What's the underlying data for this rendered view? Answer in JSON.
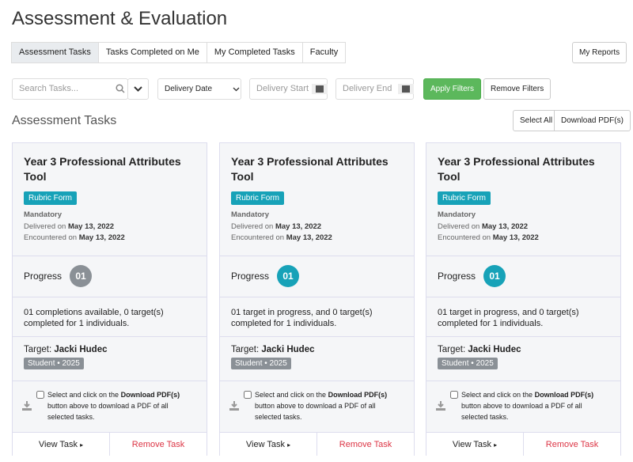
{
  "header": {
    "title": "Assessment & Evaluation"
  },
  "tabs": {
    "items": [
      "Assessment Tasks",
      "Tasks Completed on Me",
      "My Completed Tasks",
      "Faculty"
    ],
    "active": 0,
    "reports": "My Reports"
  },
  "filters": {
    "search": "Search Tasks...",
    "date_select": "Delivery Date",
    "start": "Delivery Start",
    "end": "Delivery End",
    "apply": "Apply Filters",
    "remove": "Remove Filters"
  },
  "section": {
    "title": "Assessment Tasks",
    "select_all": "Select All",
    "download": "Download PDF(s)"
  },
  "cards": [
    {
      "title": "Year 3 Professional Attributes Tool",
      "badge": "Rubric Form",
      "mandatory": "Mandatory",
      "delivered_label": "Delivered on",
      "delivered_date": "May 13, 2022",
      "encountered_label": "Encountered on",
      "encountered_date": "May 13, 2022",
      "progress_label": "Progress",
      "progress": "01",
      "progress_color": "#8a9096",
      "description": "01 completions available, 0 target(s) completed for 1 individuals.",
      "target_label": "Target:",
      "target_name": "Jacki Hudec",
      "target_tag": "Student • 2025",
      "select_pre": "Select and click on the",
      "select_bold": "Download PDF(s)",
      "select_post": "button above to download a PDF of all selected tasks.",
      "view": "View Task",
      "remove": "Remove Task"
    },
    {
      "title": "Year 3 Professional Attributes Tool",
      "badge": "Rubric Form",
      "mandatory": "Mandatory",
      "delivered_label": "Delivered on",
      "delivered_date": "May 13, 2022",
      "encountered_label": "Encountered on",
      "encountered_date": "May 13, 2022",
      "progress_label": "Progress",
      "progress": "01",
      "progress_color": "#17a2b8",
      "description": "01 target in progress, and 0 target(s) completed for 1 individuals.",
      "target_label": "Target:",
      "target_name": "Jacki Hudec",
      "target_tag": "Student • 2025",
      "select_pre": "Select and click on the",
      "select_bold": "Download PDF(s)",
      "select_post": "button above to download a PDF of all selected tasks.",
      "view": "View Task",
      "remove": "Remove Task"
    },
    {
      "title": "Year 3 Professional Attributes Tool",
      "badge": "Rubric Form",
      "mandatory": "Mandatory",
      "delivered_label": "Delivered on",
      "delivered_date": "May 13, 2022",
      "encountered_label": "Encountered on",
      "encountered_date": "May 13, 2022",
      "progress_label": "Progress",
      "progress": "01",
      "progress_color": "#17a2b8",
      "description": "01 target in progress, and 0 target(s) completed for 1 individuals.",
      "target_label": "Target:",
      "target_name": "Jacki Hudec",
      "target_tag": "Student • 2025",
      "select_pre": "Select and click on the",
      "select_bold": "Download PDF(s)",
      "select_post": "button above to download a PDF of all selected tasks.",
      "view": "View Task",
      "remove": "Remove Task"
    }
  ]
}
